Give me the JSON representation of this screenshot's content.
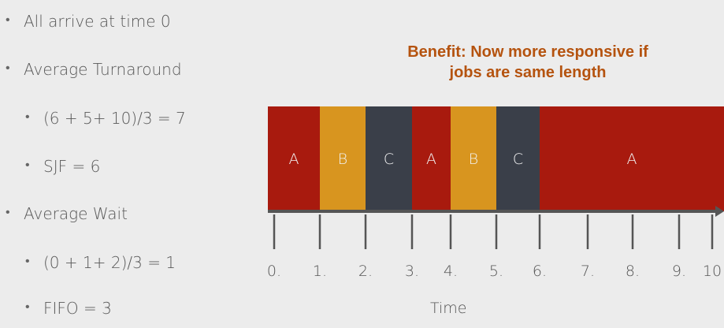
{
  "bullets": [
    {
      "text": "All arrive at time 0",
      "level": 1
    },
    {
      "text": "Average Turnaround",
      "level": 1
    },
    {
      "text": "(6 + 5+ 10)/3 = 7",
      "level": 2
    },
    {
      "text": "SJF = 6",
      "level": 2
    },
    {
      "text": "Average Wait",
      "level": 1
    },
    {
      "text": "(0 + 1+ 2)/3 = 1",
      "level": 2
    },
    {
      "text": "FIFO = 3",
      "level": 2
    }
  ],
  "benefit": {
    "line1": "Benefit: Now more responsive if",
    "line2": "jobs are same length"
  },
  "colors": {
    "A": "#a81a0e",
    "B": "#d8951f",
    "C": "#3a3f49",
    "axis": "#555555",
    "benefit": "#b5530f"
  },
  "schedule": [
    {
      "job": "A",
      "start": 0,
      "end": 1
    },
    {
      "job": "B",
      "start": 1,
      "end": 2
    },
    {
      "job": "C",
      "start": 2,
      "end": 3
    },
    {
      "job": "A",
      "start": 3,
      "end": 4
    },
    {
      "job": "B",
      "start": 4,
      "end": 5
    },
    {
      "job": "C",
      "start": 5,
      "end": 6
    },
    {
      "job": "A",
      "start": 6,
      "end": 10
    }
  ],
  "axis": {
    "tick_labels": [
      "0.",
      "1.",
      "2.",
      "3.",
      "4.",
      "5.",
      "6.",
      "7.",
      "8.",
      "9.",
      "10"
    ],
    "xlabel": "Time"
  }
}
